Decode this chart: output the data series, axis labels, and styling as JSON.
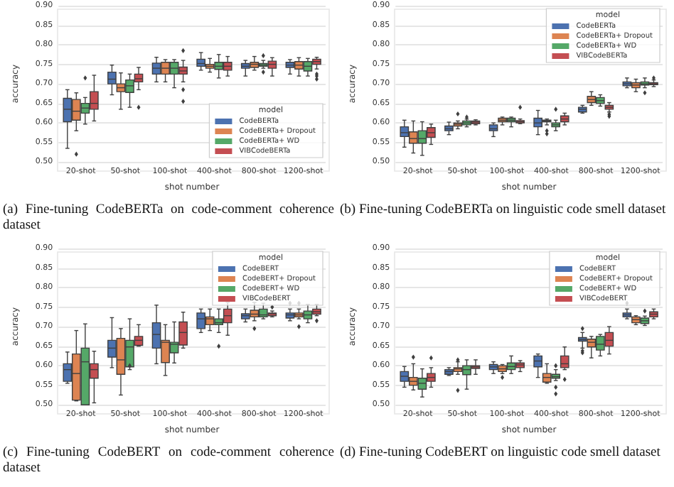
{
  "chart_data": [
    {
      "type": "box",
      "xlabel": "shot number",
      "ylabel": "accuracy",
      "categories": [
        "20-shot",
        "50-shot",
        "100-shot",
        "400-shot",
        "800-shot",
        "1200-shot"
      ],
      "ylim": [
        0.5,
        0.9
      ],
      "yticks": [
        {
          "value": 0.5,
          "label": "0.50"
        },
        {
          "value": 0.55,
          "label": "0.55"
        },
        {
          "value": 0.6,
          "label": "0.60"
        },
        {
          "value": 0.65,
          "label": "0.65"
        },
        {
          "value": 0.7,
          "label": "0.70"
        },
        {
          "value": 0.75,
          "label": "0.75"
        },
        {
          "value": 0.8,
          "label": "0.80"
        },
        {
          "value": 0.85,
          "label": "0.85"
        },
        {
          "value": 0.9,
          "label": "0.90"
        }
      ],
      "grid": "y",
      "legend": "bottom right",
      "legend_title": "model",
      "annotations": [
        "(a) Fine-tuning CodeBERTa on code-comment coherence dataset"
      ],
      "series": [
        {
          "name": "CodeBERTa",
          "color": "#4c72b0",
          "boxes": [
            {
              "low": 0.535,
              "q1": 0.603,
              "median": 0.635,
              "q3": 0.663,
              "high": 0.685
            },
            {
              "low": 0.672,
              "q1": 0.7,
              "median": 0.712,
              "q3": 0.73,
              "high": 0.748
            },
            {
              "low": 0.705,
              "q1": 0.725,
              "median": 0.74,
              "q3": 0.753,
              "high": 0.768
            },
            {
              "low": 0.735,
              "q1": 0.745,
              "median": 0.752,
              "q3": 0.763,
              "high": 0.78
            },
            {
              "low": 0.72,
              "q1": 0.74,
              "median": 0.745,
              "q3": 0.752,
              "high": 0.76
            },
            {
              "low": 0.725,
              "q1": 0.742,
              "median": 0.748,
              "q3": 0.755,
              "high": 0.762
            }
          ]
        },
        {
          "name": "CodeBERTa+ Dropout",
          "color": "#dd8452",
          "boxes": [
            {
              "low": 0.58,
              "q1": 0.607,
              "median": 0.63,
              "q3": 0.66,
              "high": 0.677,
              "outliers": [
                0.52
              ]
            },
            {
              "low": 0.635,
              "q1": 0.68,
              "median": 0.69,
              "q3": 0.7,
              "high": 0.728
            },
            {
              "low": 0.705,
              "q1": 0.725,
              "median": 0.74,
              "q3": 0.755,
              "high": 0.762
            },
            {
              "low": 0.73,
              "q1": 0.74,
              "median": 0.745,
              "q3": 0.75,
              "high": 0.765
            },
            {
              "low": 0.735,
              "q1": 0.742,
              "median": 0.75,
              "q3": 0.755,
              "high": 0.77
            },
            {
              "low": 0.72,
              "q1": 0.738,
              "median": 0.748,
              "q3": 0.757,
              "high": 0.767
            }
          ]
        },
        {
          "name": "CodeBERTa+ WD",
          "color": "#55a868",
          "boxes": [
            {
              "low": 0.597,
              "q1": 0.625,
              "median": 0.638,
              "q3": 0.65,
              "high": 0.665,
              "outliers": [
                0.715
              ]
            },
            {
              "low": 0.64,
              "q1": 0.678,
              "median": 0.695,
              "q3": 0.71,
              "high": 0.725
            },
            {
              "low": 0.69,
              "q1": 0.725,
              "median": 0.74,
              "q3": 0.755,
              "high": 0.762
            },
            {
              "low": 0.715,
              "q1": 0.737,
              "median": 0.745,
              "q3": 0.755,
              "high": 0.775
            },
            {
              "low": 0.74,
              "q1": 0.745,
              "median": 0.748,
              "q3": 0.752,
              "high": 0.76,
              "outliers": [
                0.772,
                0.73
              ]
            },
            {
              "low": 0.72,
              "q1": 0.733,
              "median": 0.745,
              "q3": 0.757,
              "high": 0.765
            }
          ]
        },
        {
          "name": "VIBCodeBERTa",
          "color": "#c44e52",
          "boxes": [
            {
              "low": 0.605,
              "q1": 0.635,
              "median": 0.65,
              "q3": 0.68,
              "high": 0.722
            },
            {
              "low": 0.685,
              "q1": 0.705,
              "median": 0.713,
              "q3": 0.725,
              "high": 0.742,
              "outliers": [
                0.64
              ]
            },
            {
              "low": 0.705,
              "q1": 0.725,
              "median": 0.733,
              "q3": 0.743,
              "high": 0.76,
              "outliers": [
                0.785,
                0.685,
                0.655
              ]
            },
            {
              "low": 0.72,
              "q1": 0.735,
              "median": 0.745,
              "q3": 0.755,
              "high": 0.77
            },
            {
              "low": 0.72,
              "q1": 0.74,
              "median": 0.75,
              "q3": 0.758,
              "high": 0.767
            },
            {
              "low": 0.738,
              "q1": 0.75,
              "median": 0.757,
              "q3": 0.763,
              "high": 0.768,
              "outliers": [
                0.725,
                0.72,
                0.712
              ]
            }
          ]
        }
      ]
    },
    {
      "type": "box",
      "xlabel": "shot number",
      "ylabel": "accuracy",
      "categories": [
        "20-shot",
        "50-shot",
        "100-shot",
        "400-shot",
        "800-shot",
        "1200-shot"
      ],
      "ylim": [
        0.5,
        0.9
      ],
      "yticks": [
        {
          "value": 0.5,
          "label": "0.50"
        },
        {
          "value": 0.55,
          "label": "0.55"
        },
        {
          "value": 0.6,
          "label": "0.60"
        },
        {
          "value": 0.65,
          "label": "0.65"
        },
        {
          "value": 0.7,
          "label": "0.70"
        },
        {
          "value": 0.75,
          "label": "0.75"
        },
        {
          "value": 0.8,
          "label": "0.80"
        },
        {
          "value": 0.85,
          "label": "0.85"
        },
        {
          "value": 0.9,
          "label": "0.90"
        }
      ],
      "grid": "y",
      "legend": "top right",
      "legend_title": "model",
      "annotations": [
        "(b) Fine-tuning CodeBERTa on linguistic code smell dataset"
      ],
      "series": [
        {
          "name": "CodeBERTa",
          "color": "#4c72b0",
          "boxes": [
            {
              "low": 0.538,
              "q1": 0.565,
              "median": 0.575,
              "q3": 0.59,
              "high": 0.607
            },
            {
              "low": 0.57,
              "q1": 0.58,
              "median": 0.585,
              "q3": 0.592,
              "high": 0.602
            },
            {
              "low": 0.565,
              "q1": 0.58,
              "median": 0.585,
              "q3": 0.595,
              "high": 0.6
            },
            {
              "low": 0.57,
              "q1": 0.59,
              "median": 0.6,
              "q3": 0.612,
              "high": 0.632
            },
            {
              "low": 0.625,
              "q1": 0.628,
              "median": 0.635,
              "q3": 0.64,
              "high": 0.645
            },
            {
              "low": 0.69,
              "q1": 0.695,
              "median": 0.7,
              "q3": 0.705,
              "high": 0.715
            }
          ]
        },
        {
          "name": "CodeBERTa+ Dropout",
          "color": "#dd8452",
          "boxes": [
            {
              "low": 0.523,
              "q1": 0.548,
              "median": 0.56,
              "q3": 0.577,
              "high": 0.605
            },
            {
              "low": 0.585,
              "q1": 0.592,
              "median": 0.597,
              "q3": 0.6,
              "high": 0.605,
              "outliers": [
                0.623
              ]
            },
            {
              "low": 0.595,
              "q1": 0.603,
              "median": 0.607,
              "q3": 0.612,
              "high": 0.615
            },
            {
              "low": 0.595,
              "q1": 0.603,
              "median": 0.605,
              "q3": 0.607,
              "high": 0.61,
              "outliers": [
                0.58,
                0.572
              ]
            },
            {
              "low": 0.645,
              "q1": 0.652,
              "median": 0.66,
              "q3": 0.668,
              "high": 0.68
            },
            {
              "low": 0.68,
              "q1": 0.69,
              "median": 0.697,
              "q3": 0.703,
              "high": 0.712
            }
          ]
        },
        {
          "name": "CodeBERTa+ WD",
          "color": "#55a868",
          "boxes": [
            {
              "low": 0.517,
              "q1": 0.548,
              "median": 0.56,
              "q3": 0.58,
              "high": 0.603
            },
            {
              "low": 0.59,
              "q1": 0.595,
              "median": 0.6,
              "q3": 0.605,
              "high": 0.61,
              "outliers": [
                0.615
              ]
            },
            {
              "low": 0.59,
              "q1": 0.603,
              "median": 0.607,
              "q3": 0.612,
              "high": 0.615
            },
            {
              "low": 0.58,
              "q1": 0.59,
              "median": 0.595,
              "q3": 0.6,
              "high": 0.607,
              "outliers": [
                0.635
              ]
            },
            {
              "low": 0.643,
              "q1": 0.65,
              "median": 0.657,
              "q3": 0.665,
              "high": 0.672
            },
            {
              "low": 0.69,
              "q1": 0.697,
              "median": 0.7,
              "q3": 0.705,
              "high": 0.715,
              "outliers": [
                0.677
              ]
            }
          ]
        },
        {
          "name": "VIBCodeBERTa",
          "color": "#c44e52",
          "boxes": [
            {
              "low": 0.545,
              "q1": 0.563,
              "median": 0.575,
              "q3": 0.588,
              "high": 0.597
            },
            {
              "low": 0.595,
              "q1": 0.598,
              "median": 0.602,
              "q3": 0.605,
              "high": 0.608
            },
            {
              "low": 0.598,
              "q1": 0.6,
              "median": 0.603,
              "q3": 0.606,
              "high": 0.61,
              "outliers": [
                0.64
              ]
            },
            {
              "low": 0.595,
              "q1": 0.603,
              "median": 0.61,
              "q3": 0.618,
              "high": 0.625
            },
            {
              "low": 0.628,
              "q1": 0.635,
              "median": 0.64,
              "q3": 0.645,
              "high": 0.652,
              "outliers": [
                0.622,
                0.617
              ]
            },
            {
              "low": 0.693,
              "q1": 0.698,
              "median": 0.7,
              "q3": 0.703,
              "high": 0.71,
              "outliers": [
                0.715
              ]
            }
          ]
        }
      ]
    },
    {
      "type": "box",
      "xlabel": "shot number",
      "ylabel": "accuracy",
      "categories": [
        "20-shot",
        "50-shot",
        "100-shot",
        "400-shot",
        "800-shot",
        "1200-shot"
      ],
      "ylim": [
        0.5,
        0.9
      ],
      "yticks": [
        {
          "value": 0.5,
          "label": "0.50"
        },
        {
          "value": 0.55,
          "label": "0.55"
        },
        {
          "value": 0.6,
          "label": "0.60"
        },
        {
          "value": 0.65,
          "label": "0.65"
        },
        {
          "value": 0.7,
          "label": "0.70"
        },
        {
          "value": 0.75,
          "label": "0.75"
        },
        {
          "value": 0.8,
          "label": "0.80"
        },
        {
          "value": 0.85,
          "label": "0.85"
        },
        {
          "value": 0.9,
          "label": "0.90"
        }
      ],
      "grid": "y",
      "legend": "top right",
      "legend_title": "model",
      "annotations": [
        "(c) Fine-tuning CodeBERT on code-comment coherence dataset"
      ],
      "series": [
        {
          "name": "CodeBERT",
          "color": "#4c72b0",
          "boxes": [
            {
              "low": 0.555,
              "q1": 0.56,
              "median": 0.59,
              "q3": 0.605,
              "high": 0.635
            },
            {
              "low": 0.595,
              "q1": 0.622,
              "median": 0.645,
              "q3": 0.665,
              "high": 0.723
            },
            {
              "low": 0.605,
              "q1": 0.645,
              "median": 0.68,
              "q3": 0.71,
              "high": 0.755
            },
            {
              "low": 0.685,
              "q1": 0.695,
              "median": 0.72,
              "q3": 0.735,
              "high": 0.745
            },
            {
              "low": 0.712,
              "q1": 0.72,
              "median": 0.728,
              "q3": 0.733,
              "high": 0.745
            },
            {
              "low": 0.715,
              "q1": 0.722,
              "median": 0.73,
              "q3": 0.735,
              "high": 0.745,
              "outliers": [
                0.76
              ]
            }
          ]
        },
        {
          "name": "CodeBERT+ Dropout",
          "color": "#dd8452",
          "boxes": [
            {
              "low": 0.51,
              "q1": 0.512,
              "median": 0.58,
              "q3": 0.63,
              "high": 0.69
            },
            {
              "low": 0.525,
              "q1": 0.578,
              "median": 0.615,
              "q3": 0.67,
              "high": 0.695
            },
            {
              "low": 0.575,
              "q1": 0.608,
              "median": 0.66,
              "q3": 0.665,
              "high": 0.705
            },
            {
              "low": 0.69,
              "q1": 0.705,
              "median": 0.72,
              "q3": 0.725,
              "high": 0.745
            },
            {
              "low": 0.715,
              "q1": 0.725,
              "median": 0.732,
              "q3": 0.742,
              "high": 0.762,
              "outliers": [
                0.695
              ]
            },
            {
              "low": 0.72,
              "q1": 0.725,
              "median": 0.73,
              "q3": 0.735,
              "high": 0.745,
              "outliers": [
                0.76,
                0.7
              ]
            }
          ]
        },
        {
          "name": "CodeBERT+ WD",
          "color": "#55a868",
          "boxes": [
            {
              "low": 0.5,
              "q1": 0.5,
              "median": 0.61,
              "q3": 0.645,
              "high": 0.707
            },
            {
              "low": 0.59,
              "q1": 0.597,
              "median": 0.648,
              "q3": 0.665,
              "high": 0.72,
              "outliers": [
                0.6
              ]
            },
            {
              "low": 0.607,
              "q1": 0.633,
              "median": 0.655,
              "q3": 0.66,
              "high": 0.712
            },
            {
              "low": 0.685,
              "q1": 0.705,
              "median": 0.71,
              "q3": 0.72,
              "high": 0.745,
              "outliers": [
                0.65
              ]
            },
            {
              "low": 0.72,
              "q1": 0.725,
              "median": 0.73,
              "q3": 0.745,
              "high": 0.76
            },
            {
              "low": 0.71,
              "q1": 0.72,
              "median": 0.73,
              "q3": 0.74,
              "high": 0.757
            }
          ]
        },
        {
          "name": "VIBCodeBERT",
          "color": "#c44e52",
          "boxes": [
            {
              "low": 0.505,
              "q1": 0.568,
              "median": 0.59,
              "q3": 0.605,
              "high": 0.637
            },
            {
              "low": 0.65,
              "q1": 0.652,
              "median": 0.665,
              "q3": 0.675,
              "high": 0.705
            },
            {
              "low": 0.645,
              "q1": 0.653,
              "median": 0.685,
              "q3": 0.712,
              "high": 0.737
            },
            {
              "low": 0.678,
              "q1": 0.71,
              "median": 0.728,
              "q3": 0.745,
              "high": 0.762
            },
            {
              "low": 0.725,
              "q1": 0.728,
              "median": 0.733,
              "q3": 0.735,
              "high": 0.74,
              "outliers": [
                0.75
              ]
            },
            {
              "low": 0.728,
              "q1": 0.732,
              "median": 0.738,
              "q3": 0.745,
              "high": 0.757,
              "outliers": [
                0.715
              ]
            }
          ]
        }
      ]
    },
    {
      "type": "box",
      "xlabel": "shot number",
      "ylabel": "accuracy",
      "categories": [
        "20-shot",
        "50-shot",
        "100-shot",
        "400-shot",
        "800-shot",
        "1200-shot"
      ],
      "ylim": [
        0.5,
        0.9
      ],
      "yticks": [
        {
          "value": 0.5,
          "label": "0.50"
        },
        {
          "value": 0.55,
          "label": "0.55"
        },
        {
          "value": 0.6,
          "label": "0.60"
        },
        {
          "value": 0.65,
          "label": "0.65"
        },
        {
          "value": 0.7,
          "label": "0.70"
        },
        {
          "value": 0.75,
          "label": "0.75"
        },
        {
          "value": 0.8,
          "label": "0.80"
        },
        {
          "value": 0.85,
          "label": "0.85"
        },
        {
          "value": 0.9,
          "label": "0.90"
        }
      ],
      "grid": "y",
      "legend": "top right",
      "legend_title": "model",
      "annotations": [
        "(d) Fine-tuning CodeBERT on linguistic code smell dataset"
      ],
      "series": [
        {
          "name": "CodeBERT",
          "color": "#4c72b0",
          "boxes": [
            {
              "low": 0.545,
              "q1": 0.56,
              "median": 0.573,
              "q3": 0.585,
              "high": 0.598
            },
            {
              "low": 0.575,
              "q1": 0.578,
              "median": 0.585,
              "q3": 0.59,
              "high": 0.595
            },
            {
              "low": 0.58,
              "q1": 0.59,
              "median": 0.597,
              "q3": 0.603,
              "high": 0.61
            },
            {
              "low": 0.57,
              "q1": 0.597,
              "median": 0.612,
              "q3": 0.625,
              "high": 0.63
            },
            {
              "low": 0.645,
              "q1": 0.663,
              "median": 0.667,
              "q3": 0.672,
              "high": 0.685,
              "outliers": [
                0.695,
                0.638,
                0.633
              ]
            },
            {
              "low": 0.72,
              "q1": 0.725,
              "median": 0.73,
              "q3": 0.735,
              "high": 0.745,
              "outliers": [
                0.76
              ]
            }
          ]
        },
        {
          "name": "CodeBERT+ Dropout",
          "color": "#dd8452",
          "boxes": [
            {
              "low": 0.538,
              "q1": 0.55,
              "median": 0.56,
              "q3": 0.57,
              "high": 0.605,
              "outliers": [
                0.622
              ]
            },
            {
              "low": 0.578,
              "q1": 0.585,
              "median": 0.592,
              "q3": 0.595,
              "high": 0.61,
              "outliers": [
                0.537,
                0.615
              ]
            },
            {
              "low": 0.58,
              "q1": 0.585,
              "median": 0.592,
              "q3": 0.6,
              "high": 0.603,
              "outliers": [
                0.57
              ]
            },
            {
              "low": 0.555,
              "q1": 0.558,
              "median": 0.57,
              "q3": 0.58,
              "high": 0.605
            },
            {
              "low": 0.62,
              "q1": 0.648,
              "median": 0.66,
              "q3": 0.668,
              "high": 0.675
            },
            {
              "low": 0.705,
              "q1": 0.71,
              "median": 0.718,
              "q3": 0.725,
              "high": 0.728
            }
          ]
        },
        {
          "name": "CodeBERT+ WD",
          "color": "#55a868",
          "boxes": [
            {
              "low": 0.52,
              "q1": 0.54,
              "median": 0.555,
              "q3": 0.568,
              "high": 0.592
            },
            {
              "low": 0.54,
              "q1": 0.577,
              "median": 0.59,
              "q3": 0.6,
              "high": 0.615
            },
            {
              "low": 0.58,
              "q1": 0.59,
              "median": 0.598,
              "q3": 0.607,
              "high": 0.625
            },
            {
              "low": 0.562,
              "q1": 0.568,
              "median": 0.572,
              "q3": 0.578,
              "high": 0.59,
              "outliers": [
                0.545,
                0.528,
                0.6
              ]
            },
            {
              "low": 0.625,
              "q1": 0.64,
              "median": 0.655,
              "q3": 0.675,
              "high": 0.68
            },
            {
              "low": 0.703,
              "q1": 0.708,
              "median": 0.715,
              "q3": 0.722,
              "high": 0.727,
              "outliers": [
                0.74
              ]
            }
          ]
        },
        {
          "name": "VIBCodeBERT",
          "color": "#c44e52",
          "boxes": [
            {
              "low": 0.545,
              "q1": 0.56,
              "median": 0.57,
              "q3": 0.58,
              "high": 0.595,
              "outliers": [
                0.62
              ]
            },
            {
              "low": 0.578,
              "q1": 0.593,
              "median": 0.597,
              "q3": 0.6,
              "high": 0.615
            },
            {
              "low": 0.585,
              "q1": 0.595,
              "median": 0.602,
              "q3": 0.607,
              "high": 0.613
            },
            {
              "low": 0.59,
              "q1": 0.595,
              "median": 0.605,
              "q3": 0.625,
              "high": 0.648,
              "outliers": [
                0.565
              ]
            },
            {
              "low": 0.63,
              "q1": 0.65,
              "median": 0.665,
              "q3": 0.685,
              "high": 0.7
            },
            {
              "low": 0.72,
              "q1": 0.725,
              "median": 0.732,
              "q3": 0.738,
              "high": 0.745
            }
          ]
        }
      ]
    }
  ]
}
